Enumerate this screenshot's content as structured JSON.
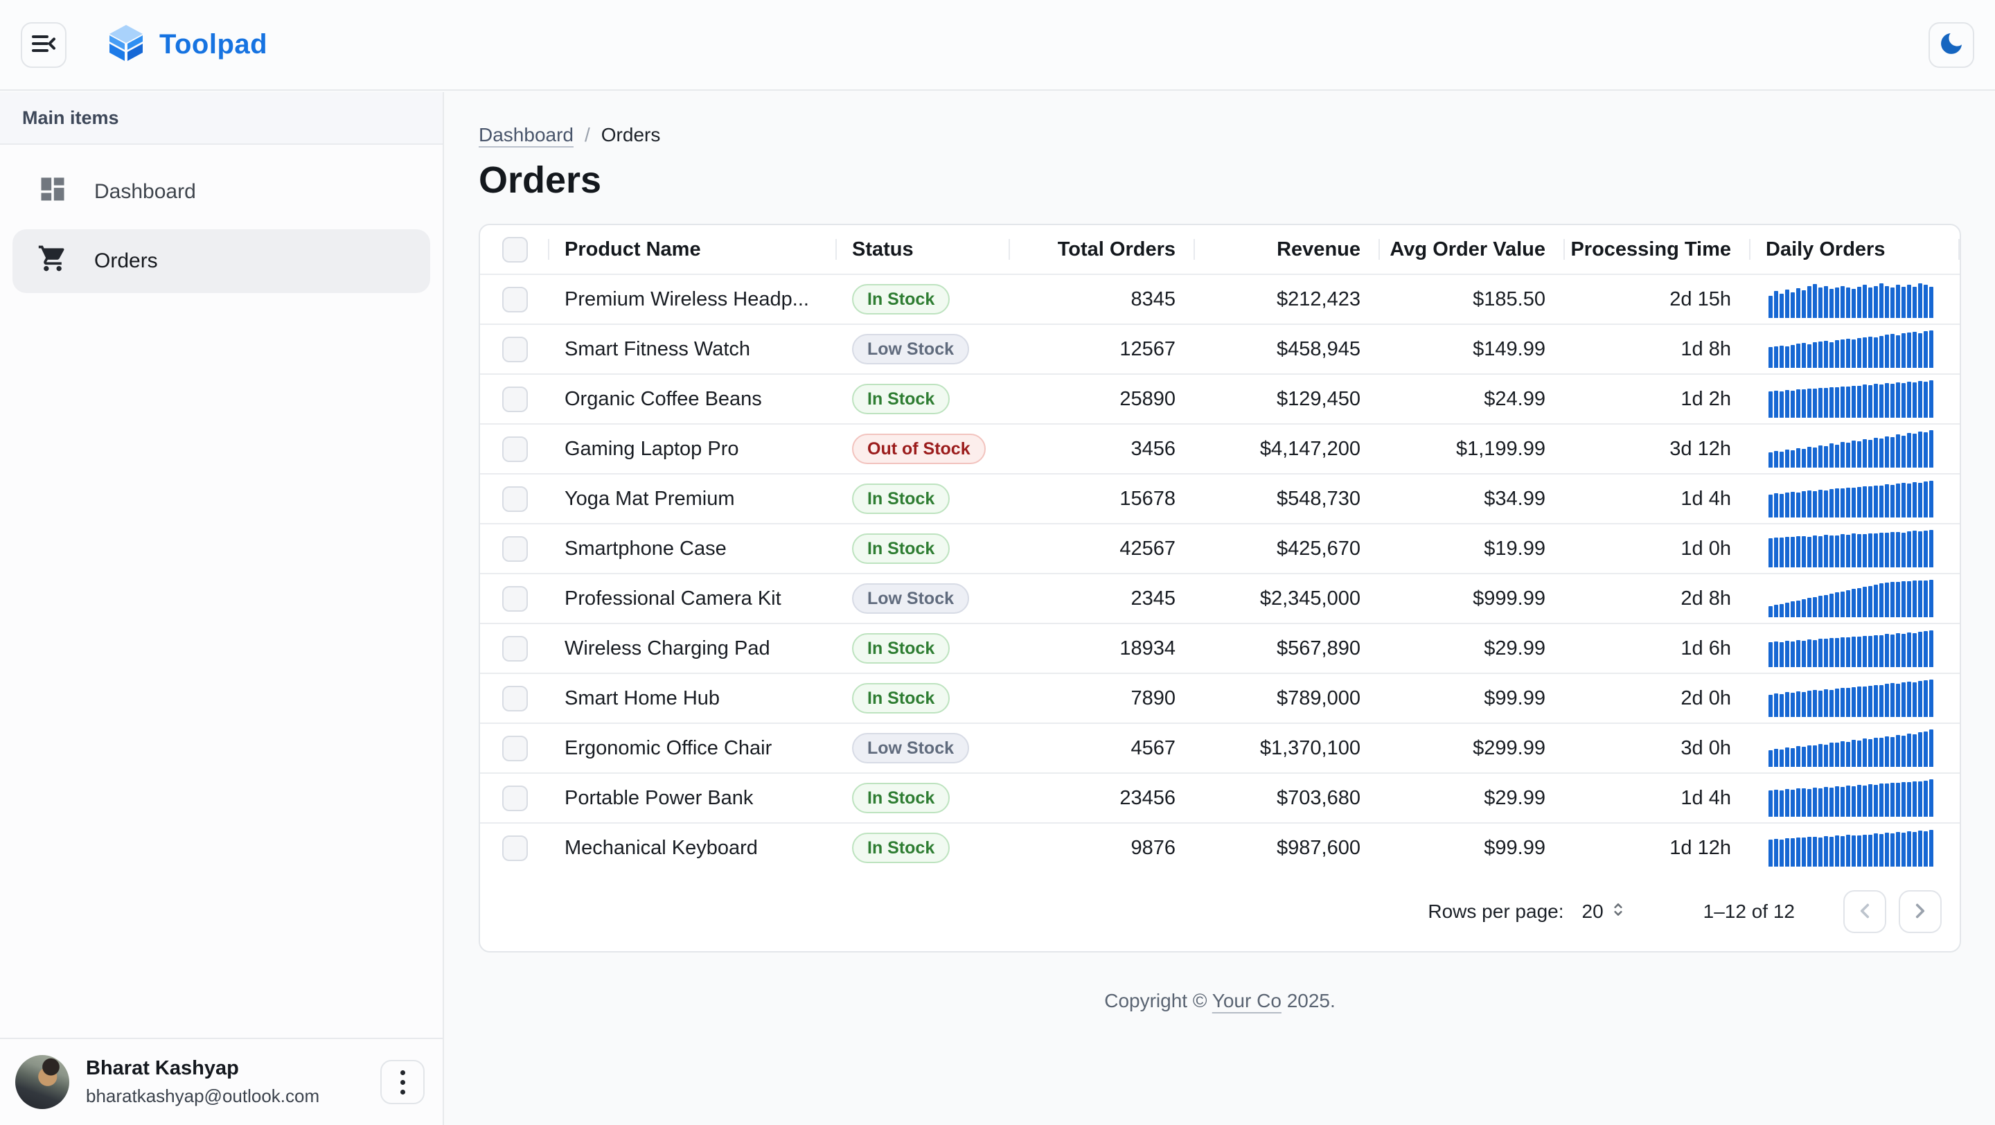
{
  "appbar": {
    "brand": "Toolpad",
    "brand_color": "#1673e1",
    "menu_icon": "collapse-menu-icon",
    "theme_icon": "moon-icon",
    "moon_color": "#1565c0"
  },
  "sidebar": {
    "section_label": "Main items",
    "items": [
      {
        "label": "Dashboard",
        "icon": "dashboard-icon",
        "selected": false
      },
      {
        "label": "Orders",
        "icon": "shopping-cart-icon",
        "selected": true
      }
    ],
    "user": {
      "name": "Bharat Kashyap",
      "email": "bharatkashyap@outlook.com"
    }
  },
  "breadcrumb": {
    "parent": "Dashboard",
    "separator": "/",
    "current": "Orders"
  },
  "page": {
    "title": "Orders"
  },
  "table": {
    "columns": [
      {
        "key": "product",
        "label": "Product Name",
        "align": "left"
      },
      {
        "key": "status",
        "label": "Status",
        "align": "left"
      },
      {
        "key": "total_orders",
        "label": "Total Orders",
        "align": "right"
      },
      {
        "key": "revenue",
        "label": "Revenue",
        "align": "right"
      },
      {
        "key": "avg_order_value",
        "label": "Avg Order Value",
        "align": "right"
      },
      {
        "key": "processing_time",
        "label": "Processing Time",
        "align": "right"
      },
      {
        "key": "daily_orders",
        "label": "Daily Orders",
        "align": "left"
      }
    ],
    "rows": [
      {
        "product": "Premium Wireless Headp...",
        "status": "In Stock",
        "total_orders": "8345",
        "revenue": "$212,423",
        "avg_order_value": "$185.50",
        "processing_time": "2d 15h",
        "daily_orders": [
          60,
          72,
          64,
          76,
          68,
          80,
          74,
          86,
          90,
          82,
          86,
          78,
          82,
          86,
          82,
          78,
          84,
          88,
          82,
          86,
          92,
          86,
          82,
          88,
          84,
          88,
          84,
          92,
          88,
          84
        ]
      },
      {
        "product": "Smart Fitness Watch",
        "status": "Low Stock",
        "total_orders": "12567",
        "revenue": "$458,945",
        "avg_order_value": "$149.99",
        "processing_time": "1d 8h",
        "daily_orders": [
          55,
          58,
          60,
          57,
          62,
          64,
          66,
          63,
          68,
          70,
          72,
          69,
          74,
          76,
          78,
          75,
          80,
          82,
          84,
          81,
          86,
          88,
          90,
          87,
          92,
          94,
          96,
          93,
          98,
          100
        ]
      },
      {
        "product": "Organic Coffee Beans",
        "status": "In Stock",
        "total_orders": "25890",
        "revenue": "$129,450",
        "avg_order_value": "$24.99",
        "processing_time": "1d 2h",
        "daily_orders": [
          70,
          72,
          71,
          74,
          73,
          76,
          75,
          78,
          77,
          80,
          79,
          82,
          81,
          84,
          83,
          86,
          85,
          88,
          87,
          90,
          89,
          92,
          91,
          94,
          93,
          96,
          95,
          98,
          97,
          100
        ]
      },
      {
        "product": "Gaming Laptop Pro",
        "status": "Out of Stock",
        "total_orders": "3456",
        "revenue": "$4,147,200",
        "avg_order_value": "$1,199.99",
        "processing_time": "3d 12h",
        "daily_orders": [
          40,
          44,
          42,
          48,
          46,
          52,
          50,
          56,
          54,
          60,
          58,
          64,
          62,
          68,
          66,
          72,
          70,
          76,
          74,
          80,
          78,
          84,
          82,
          88,
          86,
          92,
          90,
          96,
          94,
          100
        ]
      },
      {
        "product": "Yoga Mat Premium",
        "status": "In Stock",
        "total_orders": "15678",
        "revenue": "$548,730",
        "avg_order_value": "$34.99",
        "processing_time": "1d 4h",
        "daily_orders": [
          62,
          64,
          63,
          66,
          68,
          67,
          70,
          72,
          71,
          74,
          73,
          76,
          78,
          77,
          80,
          79,
          82,
          84,
          83,
          86,
          85,
          88,
          87,
          90,
          92,
          91,
          94,
          93,
          96,
          98
        ]
      },
      {
        "product": "Smartphone Case",
        "status": "In Stock",
        "total_orders": "42567",
        "revenue": "$425,670",
        "avg_order_value": "$19.99",
        "processing_time": "1d 0h",
        "daily_orders": [
          78,
          80,
          79,
          82,
          81,
          84,
          83,
          82,
          85,
          84,
          87,
          86,
          85,
          88,
          87,
          90,
          89,
          88,
          91,
          90,
          93,
          92,
          95,
          94,
          93,
          96,
          98,
          97,
          99,
          100
        ]
      },
      {
        "product": "Professional Camera Kit",
        "status": "Low Stock",
        "total_orders": "2345",
        "revenue": "$2,345,000",
        "avg_order_value": "$999.99",
        "processing_time": "2d 8h",
        "daily_orders": [
          30,
          33,
          36,
          39,
          42,
          45,
          48,
          51,
          54,
          57,
          60,
          63,
          66,
          69,
          72,
          75,
          78,
          81,
          84,
          87,
          90,
          92,
          94,
          95,
          96,
          97,
          98,
          99,
          99,
          100
        ]
      },
      {
        "product": "Wireless Charging Pad",
        "status": "In Stock",
        "total_orders": "18934",
        "revenue": "$567,890",
        "avg_order_value": "$29.99",
        "processing_time": "1d 6h",
        "daily_orders": [
          66,
          68,
          67,
          70,
          69,
          72,
          71,
          74,
          73,
          76,
          75,
          78,
          77,
          80,
          79,
          82,
          81,
          84,
          83,
          86,
          85,
          88,
          87,
          90,
          89,
          92,
          91,
          94,
          96,
          98
        ]
      },
      {
        "product": "Smart Home Hub",
        "status": "In Stock",
        "total_orders": "7890",
        "revenue": "$789,000",
        "avg_order_value": "$99.99",
        "processing_time": "2d 0h",
        "daily_orders": [
          60,
          63,
          62,
          66,
          65,
          68,
          67,
          70,
          72,
          71,
          74,
          73,
          76,
          78,
          77,
          80,
          82,
          81,
          84,
          86,
          85,
          88,
          90,
          89,
          92,
          94,
          93,
          96,
          98,
          100
        ]
      },
      {
        "product": "Ergonomic Office Chair",
        "status": "Low Stock",
        "total_orders": "4567",
        "revenue": "$1,370,100",
        "avg_order_value": "$299.99",
        "processing_time": "3d 0h",
        "daily_orders": [
          45,
          48,
          47,
          52,
          50,
          55,
          54,
          58,
          57,
          62,
          60,
          65,
          64,
          68,
          67,
          72,
          70,
          75,
          74,
          78,
          77,
          82,
          80,
          85,
          84,
          88,
          87,
          92,
          95,
          100
        ]
      },
      {
        "product": "Portable Power Bank",
        "status": "In Stock",
        "total_orders": "23456",
        "revenue": "$703,680",
        "avg_order_value": "$29.99",
        "processing_time": "1d 4h",
        "daily_orders": [
          70,
          72,
          71,
          74,
          73,
          76,
          75,
          74,
          77,
          76,
          79,
          78,
          81,
          80,
          83,
          82,
          85,
          84,
          87,
          86,
          89,
          88,
          91,
          90,
          93,
          92,
          95,
          94,
          97,
          100
        ]
      },
      {
        "product": "Mechanical Keyboard",
        "status": "In Stock",
        "total_orders": "9876",
        "revenue": "$987,600",
        "avg_order_value": "$99.99",
        "processing_time": "1d 12h",
        "daily_orders": [
          72,
          74,
          73,
          76,
          75,
          78,
          77,
          80,
          79,
          78,
          81,
          80,
          83,
          82,
          85,
          84,
          83,
          86,
          85,
          88,
          87,
          90,
          89,
          92,
          91,
          94,
          93,
          96,
          95,
          98
        ]
      }
    ]
  },
  "status_variants": {
    "In Stock": {
      "text": "#2e7d32",
      "bg": "#f1faf1",
      "border": "#bde3bf"
    },
    "Low Stock": {
      "text": "#606b7d",
      "bg": "#edeff5",
      "border": "#d7dbe5"
    },
    "Out of Stock": {
      "text": "#9b1c1c",
      "bg": "#fceeec",
      "border": "#f2c3be"
    }
  },
  "pagination": {
    "rows_per_page_label": "Rows per page:",
    "rows_per_page_value": "20",
    "range_label": "1–12 of 12"
  },
  "footer": {
    "prefix": "Copyright ©",
    "company": "Your Co",
    "suffix": "2025."
  },
  "colors": {
    "sparkline": "#1667d3",
    "accent": "#1673e1"
  }
}
